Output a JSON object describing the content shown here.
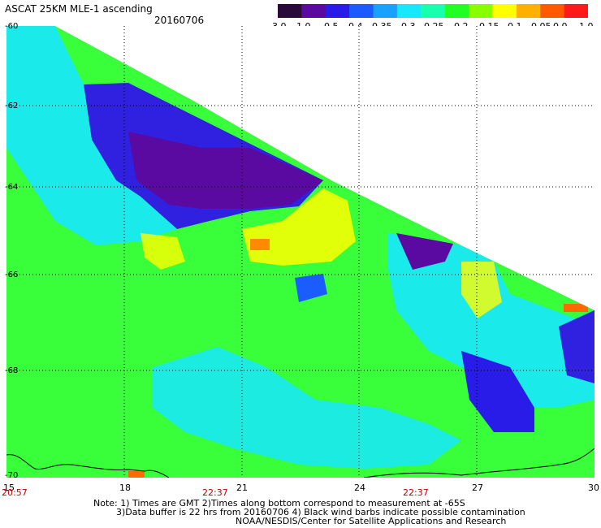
{
  "header": {
    "title": "ASCAT 25KM MLE-1 ascending",
    "date": "20160706"
  },
  "colorbar": {
    "labels": [
      "-3.0",
      "-1.0",
      "-0.5",
      "-0.4",
      "-0.35",
      "-0.3",
      "-0.25",
      "-0.2",
      "-0.15",
      "-0.1",
      "-0.05",
      "0.0",
      "1.0"
    ],
    "colors": [
      "#2a0a3a",
      "#5a0aa0",
      "#2a1ce8",
      "#1a5cff",
      "#1aa0ff",
      "#18e8ff",
      "#18ffb0",
      "#22ff22",
      "#88ff00",
      "#ffff00",
      "#ffb000",
      "#ff5a00",
      "#ff1a1a"
    ]
  },
  "map": {
    "lat_labels": [
      "-60",
      "-62",
      "-64",
      "-66",
      "-68",
      "-70"
    ],
    "lon_labels": [
      "15",
      "18",
      "21",
      "24",
      "27",
      "30"
    ],
    "time_labels": [
      "20:57",
      "22:37",
      "22:37"
    ]
  },
  "notes": {
    "line1": "Note: 1) Times are GMT 2)Times along bottom correspond to measurement at -65S",
    "line2": "3)Data buffer is 22 hrs from 20160706 4) Black wind barbs indicate possible contamination",
    "line3": "NOAA/NESDIS/Center for Satellite Applications and Research"
  }
}
